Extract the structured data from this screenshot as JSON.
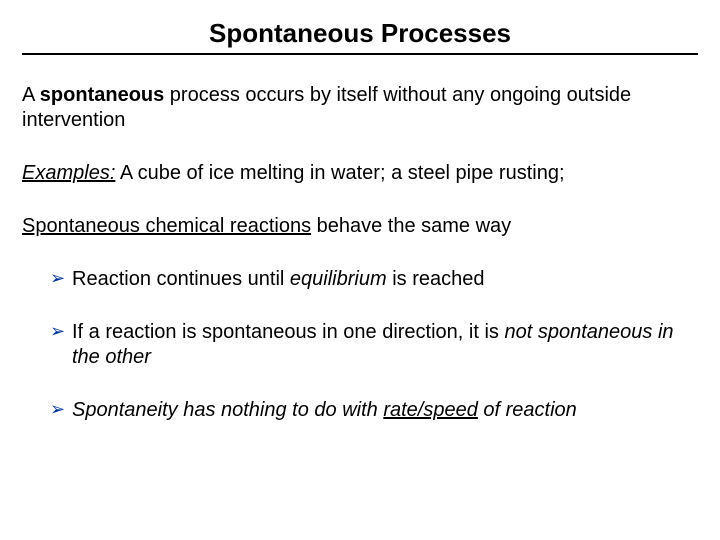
{
  "title": "Spontaneous Processes",
  "p1_pre": "A ",
  "p1_bold": "spontaneous",
  "p1_post": " process occurs by itself without any ongoing outside intervention",
  "p2_label": "Examples:",
  "p2_rest": " A cube of ice melting in water; a steel pipe rusting;",
  "p3_underline": "Spontaneous chemical reactions",
  "p3_rest": " behave the same way",
  "b1_pre": "Reaction continues until ",
  "b1_italic": "equilibrium",
  "b1_post": " is reached",
  "b2_pre": "If a reaction is spontaneous in one direction, it is ",
  "b2_italic": "not spontaneous in the other",
  "b3_italic": "Spontaneity has nothing to do with ",
  "b3_under": "rate/speed",
  "b3_post": " of reaction",
  "colors": {
    "bullet_marker": "#003399",
    "text": "#000000",
    "background": "#ffffff"
  }
}
